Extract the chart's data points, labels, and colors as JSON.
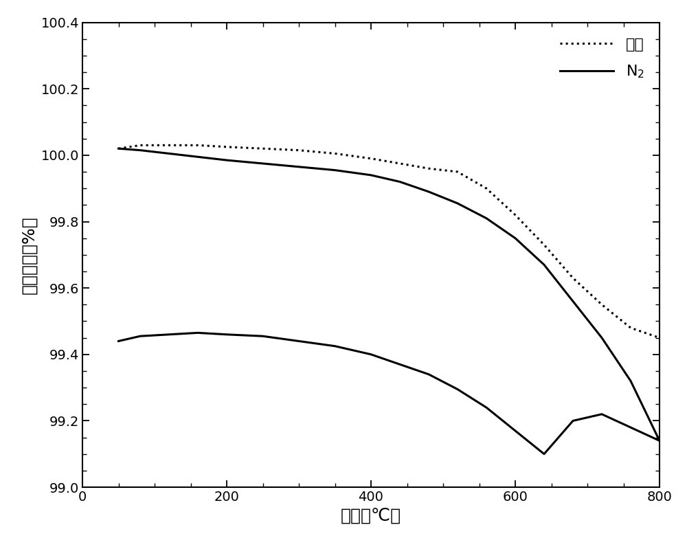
{
  "title": "",
  "xlabel": "温度（℃）",
  "ylabel": "质量损失（%）",
  "xlim": [
    0,
    800
  ],
  "ylim": [
    99.0,
    100.4
  ],
  "xticks": [
    0,
    200,
    400,
    600,
    800
  ],
  "yticks": [
    99.0,
    99.2,
    99.4,
    99.6,
    99.8,
    100.0,
    100.2,
    100.4
  ],
  "air_x": [
    50,
    80,
    120,
    160,
    200,
    250,
    300,
    350,
    400,
    440,
    480,
    520,
    560,
    600,
    640,
    680,
    720,
    760,
    800
  ],
  "air_y": [
    100.02,
    100.03,
    100.03,
    100.03,
    100.025,
    100.02,
    100.015,
    100.005,
    99.99,
    99.975,
    99.96,
    99.95,
    99.9,
    99.82,
    99.73,
    99.63,
    99.55,
    99.48,
    99.45
  ],
  "n2_upper_x": [
    50,
    80,
    120,
    160,
    200,
    250,
    300,
    350,
    400,
    440,
    480,
    520,
    560,
    600,
    640,
    680,
    720,
    760,
    800
  ],
  "n2_upper_y": [
    100.02,
    100.015,
    100.005,
    99.995,
    99.985,
    99.975,
    99.965,
    99.955,
    99.94,
    99.92,
    99.89,
    99.855,
    99.81,
    99.75,
    99.67,
    99.56,
    99.45,
    99.32,
    99.14
  ],
  "n2_lower_x": [
    50,
    80,
    120,
    160,
    200,
    250,
    300,
    350,
    400,
    440,
    480,
    520,
    560,
    600,
    640,
    680,
    720,
    760,
    800
  ],
  "n2_lower_y": [
    99.44,
    99.455,
    99.46,
    99.465,
    99.46,
    99.455,
    99.44,
    99.425,
    99.4,
    99.37,
    99.34,
    99.295,
    99.24,
    99.17,
    99.1,
    99.2,
    99.22,
    99.18,
    99.14
  ],
  "line_color": "#000000",
  "dot_color": "#000000",
  "background_color": "#ffffff",
  "legend_air": "空气",
  "legend_n2": "N$_2$",
  "fontsize_label": 18,
  "fontsize_tick": 14,
  "fontsize_legend": 16
}
